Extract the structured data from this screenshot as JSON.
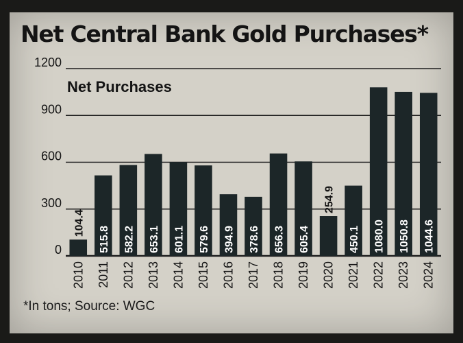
{
  "chart_data": {
    "type": "bar",
    "title": "Net Central Bank Gold Purchases*",
    "subtitle": "Net Purchases",
    "footnote": "*In tons; Source: WGC",
    "categories": [
      "2010",
      "2011",
      "2012",
      "2013",
      "2014",
      "2015",
      "2016",
      "2017",
      "2018",
      "2019",
      "2020",
      "2021",
      "2022",
      "2023",
      "2024"
    ],
    "values": [
      104.4,
      515.8,
      582.2,
      653.1,
      601.1,
      579.6,
      394.9,
      378.6,
      656.3,
      605.4,
      254.9,
      450.1,
      1080.0,
      1050.8,
      1044.6
    ],
    "value_labels": [
      "104.4",
      "515.8",
      "582.2",
      "653.1",
      "601.1",
      "579.6",
      "394.9",
      "378.6",
      "656.3",
      "605.4",
      "254.9",
      "450.1",
      "1080.0",
      "1050.8",
      "1044.6"
    ],
    "yticks": [
      "0",
      "300",
      "600",
      "900",
      "1200"
    ],
    "ylim": [
      0,
      1200
    ],
    "grid": true,
    "bar_color": "#1c2628",
    "label_color_inside": "#ffffff",
    "label_color_outside": "#141414"
  }
}
